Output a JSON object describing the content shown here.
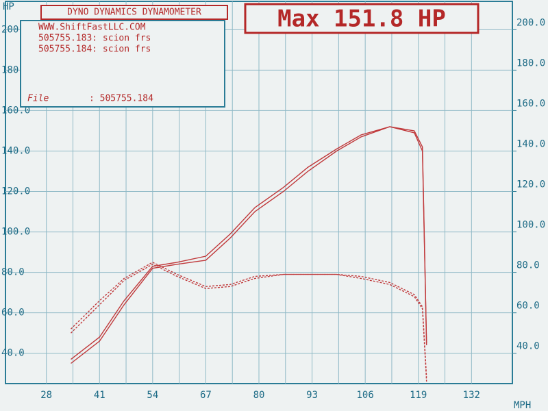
{
  "chart_data": {
    "type": "line",
    "title": "Max 151.8 HP",
    "header": "DYNO DYNAMICS DYNAMOMETER",
    "info": [
      "WWW.ShiftFastLLC.COM",
      "505755.183: scion frs",
      "505755.184: scion frs"
    ],
    "file_label": "File",
    "file_value": ": 505755.184",
    "y_label": "HP",
    "x_label": "MPH",
    "x": [
      34,
      41,
      47,
      54,
      60,
      67,
      73,
      79,
      86,
      92,
      99,
      105,
      112,
      118,
      120,
      121
    ],
    "xlim": [
      18,
      142
    ],
    "xticks": [
      28,
      41,
      54,
      67,
      80,
      93,
      106,
      119,
      132
    ],
    "ylim": [
      25,
      214
    ],
    "yticks": [
      {
        "value": 40,
        "label": "40.0"
      },
      {
        "value": 60,
        "label": "60.0"
      },
      {
        "value": 80,
        "label": "80.0"
      },
      {
        "value": 100,
        "label": "100.0"
      },
      {
        "value": 120,
        "label": "120.0"
      },
      {
        "value": 140,
        "label": "140.0"
      },
      {
        "value": 160,
        "label": "160.0"
      },
      {
        "value": 180,
        "label": "180.0"
      },
      {
        "value": 200,
        "label": "200.0"
      }
    ],
    "y2lim": [
      25,
      214
    ],
    "y2ticks": [
      {
        "value": 40,
        "label": "40.0"
      },
      {
        "value": 60,
        "label": "60.0"
      },
      {
        "value": 80,
        "label": "80.0"
      },
      {
        "value": 100,
        "label": "100.0"
      },
      {
        "value": 120,
        "label": "120.0"
      },
      {
        "value": 140,
        "label": "140.0"
      },
      {
        "value": 160,
        "label": "160.0"
      },
      {
        "value": 180,
        "label": "180.0"
      },
      {
        "value": 200,
        "label": "200.0"
      }
    ],
    "grid": true,
    "series": [
      {
        "name": "505755.183: scion frs",
        "color": "#c0393b",
        "dash": false,
        "values": [
          37,
          48,
          66,
          83,
          85,
          88,
          99,
          112,
          122,
          132,
          141,
          148,
          152,
          149,
          140,
          44
        ]
      },
      {
        "name": "505755.184: scion frs",
        "color": "#c0393b",
        "dash": false,
        "values": [
          35,
          46,
          64,
          82,
          84,
          86,
          97,
          110,
          120,
          130,
          140,
          147,
          152,
          150,
          142,
          45
        ]
      },
      {
        "color": "#c0393b",
        "dash": true,
        "axis": "y2",
        "values": [
          52,
          66,
          77,
          85,
          79,
          73,
          74,
          78,
          79,
          79,
          79,
          78,
          75,
          69,
          63,
          28
        ]
      },
      {
        "color": "#c0393b",
        "dash": true,
        "axis": "y2",
        "values": [
          50,
          64,
          76,
          84,
          78,
          72,
          73,
          77,
          79,
          79,
          79,
          77,
          74,
          68,
          62,
          26
        ]
      }
    ]
  }
}
